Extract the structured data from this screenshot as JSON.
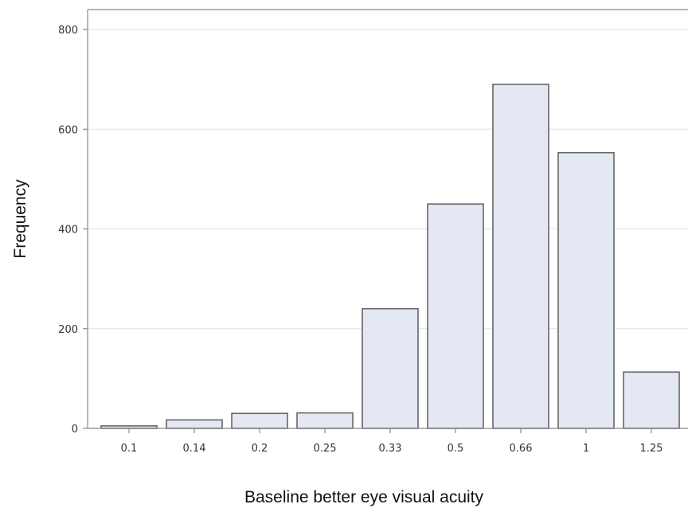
{
  "chart_data": {
    "type": "bar",
    "title": "",
    "xlabel": "Baseline better eye visual acuity",
    "ylabel": "Frequency",
    "categories": [
      "0.1",
      "0.14",
      "0.2",
      "0.25",
      "0.33",
      "0.5",
      "0.66",
      "1",
      "1.25"
    ],
    "values": [
      5,
      17,
      30,
      31,
      240,
      450,
      690,
      553,
      113
    ],
    "yticks": [
      0,
      200,
      400,
      600,
      800
    ],
    "ylim": [
      0,
      840
    ],
    "grid": true,
    "legend": "none",
    "colors": {
      "bar_fill": "#e3e8f2",
      "bar_stroke": "#666666",
      "grid": "#e2e2e2",
      "frame": "#888888"
    }
  }
}
